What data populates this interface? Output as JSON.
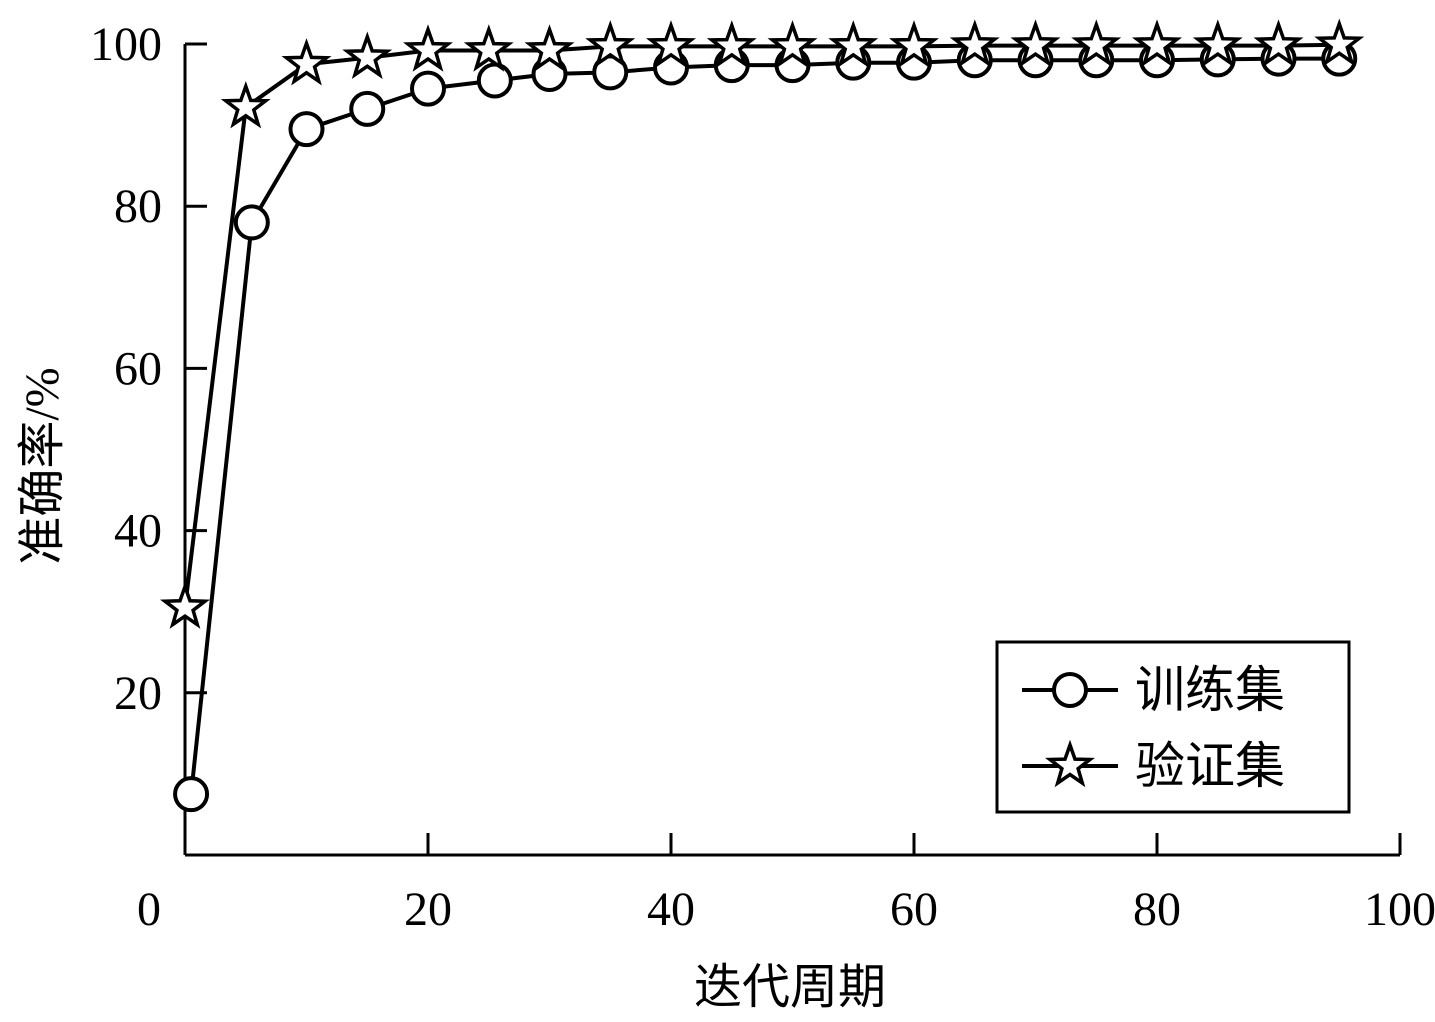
{
  "chart_data": {
    "type": "line",
    "title": "",
    "xlabel": "迭代周期",
    "ylabel": "准确率/%",
    "xlim": [
      0,
      100
    ],
    "ylim": [
      0,
      100
    ],
    "x_ticks": [
      0,
      20,
      40,
      60,
      80,
      100
    ],
    "y_ticks": [
      20,
      40,
      60,
      80,
      100
    ],
    "grid": false,
    "legend_position": "bottom-right",
    "series": [
      {
        "name": "训练集",
        "marker": "circle",
        "x": [
          0.5,
          5.5,
          10,
          15,
          20,
          25.5,
          30,
          35,
          40,
          45,
          50,
          55,
          60,
          65,
          70,
          75,
          80,
          85,
          90,
          95
        ],
        "y": [
          7.5,
          78,
          89.5,
          92,
          94.5,
          95.5,
          96.3,
          96.5,
          97.1,
          97.4,
          97.4,
          97.7,
          97.7,
          98,
          98,
          98,
          98,
          98.1,
          98.2,
          98.2
        ]
      },
      {
        "name": "验证集",
        "marker": "star",
        "x": [
          0,
          5,
          10,
          15,
          20,
          25,
          30,
          35,
          40,
          45,
          50,
          55,
          60,
          65,
          70,
          75,
          80,
          85,
          90,
          95
        ],
        "y": [
          30.5,
          92.2,
          97.5,
          98.3,
          99.2,
          99.2,
          99.2,
          99.7,
          99.7,
          99.7,
          99.7,
          99.7,
          99.7,
          99.8,
          99.8,
          99.8,
          99.8,
          99.8,
          99.8,
          99.9
        ]
      }
    ]
  }
}
